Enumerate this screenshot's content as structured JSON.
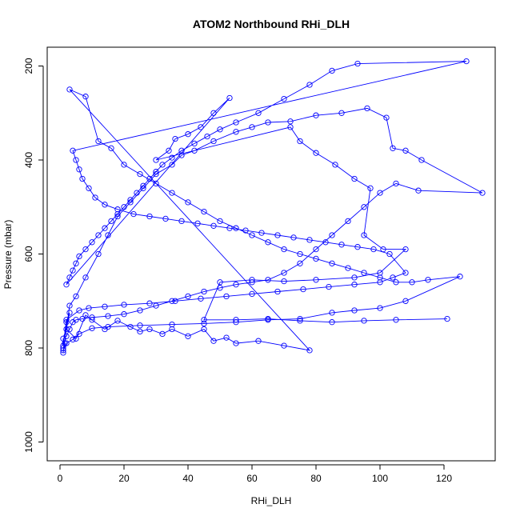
{
  "chart_data": {
    "type": "scatter",
    "title": "ATOM2 Northbound RHi_DLH",
    "xlabel": "RHi_DLH",
    "ylabel": "Pressure (mbar)",
    "xlim": [
      -4,
      136
    ],
    "ylim": [
      1040,
      160
    ],
    "y_reversed": true,
    "x_ticks": [
      0,
      20,
      40,
      60,
      80,
      100,
      120
    ],
    "y_ticks": [
      200,
      400,
      600,
      800,
      1000
    ],
    "grid": false,
    "legend": "none",
    "series": [
      {
        "color": "#0000ff",
        "marker": "open-circle",
        "connected": true,
        "points": [
          [
            1,
            800
          ],
          [
            1.5,
            790
          ],
          [
            2,
            745
          ],
          [
            3,
            725
          ],
          [
            2,
            760
          ],
          [
            5,
            780
          ],
          [
            8,
            730
          ],
          [
            10,
            740
          ],
          [
            14,
            760
          ],
          [
            18,
            742
          ],
          [
            22,
            755
          ],
          [
            25,
            765
          ],
          [
            28,
            760
          ],
          [
            32,
            770
          ],
          [
            35,
            760
          ],
          [
            40,
            775
          ],
          [
            45,
            760
          ],
          [
            48,
            785
          ],
          [
            52,
            778
          ],
          [
            55,
            790
          ],
          [
            62,
            785
          ],
          [
            70,
            795
          ],
          [
            78,
            805
          ],
          [
            3,
            250
          ],
          [
            8,
            265
          ],
          [
            12,
            360
          ],
          [
            16,
            375
          ],
          [
            20,
            410
          ],
          [
            25,
            430
          ],
          [
            30,
            450
          ],
          [
            35,
            470
          ],
          [
            40,
            490
          ],
          [
            45,
            510
          ],
          [
            50,
            530
          ],
          [
            55,
            545
          ],
          [
            60,
            560
          ],
          [
            65,
            575
          ],
          [
            70,
            590
          ],
          [
            75,
            600
          ],
          [
            80,
            610
          ],
          [
            85,
            620
          ],
          [
            90,
            630
          ],
          [
            95,
            640
          ],
          [
            100,
            650
          ],
          [
            105,
            660
          ],
          [
            110,
            660
          ],
          [
            115,
            655
          ],
          [
            125,
            648
          ],
          [
            108,
            700
          ],
          [
            100,
            715
          ],
          [
            92,
            720
          ],
          [
            85,
            725
          ],
          [
            75,
            738
          ],
          [
            65,
            740
          ],
          [
            55,
            745
          ],
          [
            45,
            748
          ],
          [
            35,
            750
          ],
          [
            25,
            752
          ],
          [
            15,
            755
          ],
          [
            10,
            758
          ],
          [
            6,
            770
          ],
          [
            4,
            782
          ],
          [
            2,
            790
          ],
          [
            1,
            805
          ],
          [
            1,
            810
          ],
          [
            3,
            710
          ],
          [
            5,
            690
          ],
          [
            8,
            650
          ],
          [
            12,
            600
          ],
          [
            15,
            560
          ],
          [
            18,
            520
          ],
          [
            22,
            490
          ],
          [
            26,
            460
          ],
          [
            30,
            430
          ],
          [
            35,
            410
          ],
          [
            38,
            390
          ],
          [
            42,
            380
          ],
          [
            48,
            360
          ],
          [
            55,
            340
          ],
          [
            60,
            330
          ],
          [
            65,
            320
          ],
          [
            72,
            318
          ],
          [
            80,
            305
          ],
          [
            88,
            300
          ],
          [
            96,
            290
          ],
          [
            102,
            310
          ],
          [
            104,
            375
          ],
          [
            108,
            380
          ],
          [
            113,
            400
          ],
          [
            132,
            470
          ],
          [
            112,
            465
          ],
          [
            105,
            450
          ],
          [
            100,
            470
          ],
          [
            95,
            500
          ],
          [
            90,
            530
          ],
          [
            85,
            560
          ],
          [
            80,
            590
          ],
          [
            75,
            620
          ],
          [
            70,
            640
          ],
          [
            65,
            655
          ],
          [
            60,
            660
          ],
          [
            55,
            665
          ],
          [
            50,
            672
          ],
          [
            45,
            680
          ],
          [
            40,
            690
          ],
          [
            35,
            700
          ],
          [
            30,
            710
          ],
          [
            25,
            720
          ],
          [
            20,
            728
          ],
          [
            15,
            732
          ],
          [
            10,
            735
          ],
          [
            7,
            738
          ],
          [
            5,
            740
          ],
          [
            4,
            745
          ],
          [
            3,
            760
          ],
          [
            2,
            775
          ],
          [
            1,
            780
          ],
          [
            1,
            795
          ],
          [
            2,
            740
          ],
          [
            6,
            720
          ],
          [
            9,
            715
          ],
          [
            14,
            712
          ],
          [
            20,
            708
          ],
          [
            28,
            705
          ],
          [
            36,
            700
          ],
          [
            44,
            695
          ],
          [
            52,
            690
          ],
          [
            60,
            685
          ],
          [
            68,
            680
          ],
          [
            76,
            675
          ],
          [
            84,
            670
          ],
          [
            92,
            665
          ],
          [
            100,
            660
          ],
          [
            104,
            650
          ],
          [
            108,
            640
          ],
          [
            103,
            600
          ],
          [
            98,
            590
          ],
          [
            93,
            585
          ],
          [
            88,
            580
          ],
          [
            83,
            575
          ],
          [
            78,
            570
          ],
          [
            73,
            565
          ],
          [
            68,
            560
          ],
          [
            63,
            555
          ],
          [
            58,
            550
          ],
          [
            53,
            545
          ],
          [
            48,
            540
          ],
          [
            43,
            535
          ],
          [
            38,
            530
          ],
          [
            33,
            525
          ],
          [
            28,
            520
          ],
          [
            23,
            515
          ],
          [
            18,
            505
          ],
          [
            14,
            495
          ],
          [
            11,
            480
          ],
          [
            9,
            460
          ],
          [
            7,
            440
          ],
          [
            6,
            420
          ],
          [
            5,
            400
          ],
          [
            4,
            380
          ],
          [
            127,
            190
          ],
          [
            93,
            195
          ],
          [
            85,
            210
          ],
          [
            78,
            240
          ],
          [
            70,
            270
          ],
          [
            62,
            300
          ],
          [
            55,
            320
          ],
          [
            50,
            335
          ],
          [
            46,
            350
          ],
          [
            42,
            365
          ],
          [
            38,
            380
          ],
          [
            35,
            395
          ],
          [
            32,
            410
          ],
          [
            30,
            425
          ],
          [
            28,
            440
          ],
          [
            26,
            455
          ],
          [
            24,
            470
          ],
          [
            22,
            485
          ],
          [
            20,
            500
          ],
          [
            18,
            515
          ],
          [
            16,
            530
          ],
          [
            14,
            545
          ],
          [
            12,
            560
          ],
          [
            10,
            575
          ],
          [
            8,
            590
          ],
          [
            6,
            605
          ],
          [
            5,
            620
          ],
          [
            4,
            635
          ],
          [
            3,
            650
          ],
          [
            2,
            665
          ],
          [
            53,
            268
          ],
          [
            48,
            300
          ],
          [
            44,
            330
          ],
          [
            40,
            345
          ],
          [
            36,
            355
          ],
          [
            34,
            380
          ],
          [
            30,
            400
          ],
          [
            72,
            330
          ],
          [
            75,
            360
          ],
          [
            80,
            385
          ],
          [
            86,
            410
          ],
          [
            92,
            440
          ],
          [
            97,
            460
          ],
          [
            95,
            560
          ],
          [
            101,
            590
          ],
          [
            108,
            590
          ],
          [
            100,
            640
          ],
          [
            92,
            650
          ],
          [
            80,
            655
          ],
          [
            70,
            658
          ],
          [
            60,
            655
          ],
          [
            50,
            660
          ],
          [
            45,
            740
          ],
          [
            55,
            740
          ],
          [
            65,
            738
          ],
          [
            75,
            742
          ],
          [
            85,
            745
          ],
          [
            95,
            742
          ],
          [
            105,
            740
          ],
          [
            121,
            738
          ]
        ]
      }
    ]
  }
}
